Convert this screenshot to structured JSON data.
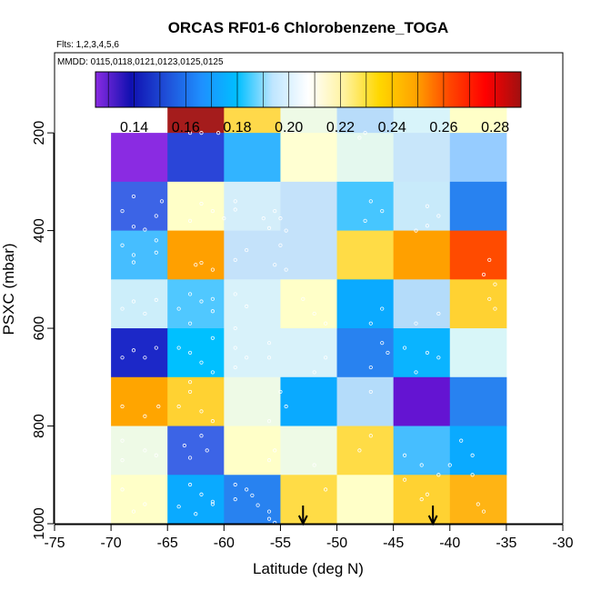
{
  "chart_data": {
    "type": "heatmap",
    "title": "ORCAS RF01-6 Chlorobenzene_TOGA",
    "subtitle_flights": "Flts: 1,2,3,4,5,6",
    "subtitle_dates": "MMDD: 0115,0118,0121,0123,0125,0125",
    "xlabel": "Latitude (deg N)",
    "ylabel": "PSXC (mbar)",
    "xlim": [
      -75,
      -30
    ],
    "ylim": [
      1000,
      0
    ],
    "x_ticks": [
      "-75",
      "-70",
      "-65",
      "-60",
      "-55",
      "-50",
      "-45",
      "-40",
      "-35",
      "-30"
    ],
    "y_ticks": [
      "200",
      "400",
      "600",
      "800",
      "1000"
    ],
    "colorbar": {
      "range": [
        0.125,
        0.29
      ],
      "ticks": [
        "0.14",
        "0.16",
        "0.18",
        "0.20",
        "0.22",
        "0.24",
        "0.26",
        "0.28"
      ],
      "stops": [
        "#8a2be2",
        "#1010b0",
        "#1f4fd8",
        "#1e90ff",
        "#00bfff",
        "#bfe6ff",
        "#ffffff",
        "#fff3a0",
        "#ffd700",
        "#ffa500",
        "#ff4500",
        "#ff0000",
        "#a01010"
      ]
    },
    "x_edges": [
      -70,
      -65,
      -60,
      -55,
      -50,
      -45,
      -40,
      -35
    ],
    "y_edges": [
      100,
      200,
      300,
      400,
      500,
      600,
      700,
      800,
      900,
      1000
    ],
    "cell_colors": [
      [
        null,
        "#a51c1c",
        "#ffd94a",
        "#eefae6",
        "#b8dcfa",
        "#d8f4fa",
        "#ffffc8"
      ],
      [
        "#8a2be2",
        "#2a45d8",
        "#32b4ff",
        "#ffffd2",
        "#e4f8ee",
        "#c8e6fa",
        "#96ccff"
      ],
      [
        "#3c64e6",
        "#ffffc8",
        "#d4eefa",
        "#c4e2fa",
        "#46c6ff",
        "#c8eafa",
        "#2882f0"
      ],
      [
        "#46beff",
        "#ffa000",
        "#c4e2fa",
        "#c4e2fa",
        "#ffdc46",
        "#ffa000",
        "#ff4b00"
      ],
      [
        "#cceefa",
        "#50c8ff",
        "#d8f2fa",
        "#ffffc8",
        "#0aaaff",
        "#b4dcfa",
        "#ffd232"
      ],
      [
        "#1c28c8",
        "#00c0ff",
        "#d8f2fa",
        "#d8f2fa",
        "#2882f0",
        "#0ab4ff",
        "#d8f6f8"
      ],
      [
        "#ffa500",
        "#ffd232",
        "#eefae6",
        "#0aaaff",
        "#b4dcfa",
        "#6414d2",
        "#2882f0"
      ],
      [
        "#eefae6",
        "#3c64e6",
        "#ffffc8",
        "#eefae6",
        "#ffdc46",
        "#46beff",
        "#0aaaff"
      ],
      [
        "#ffffc8",
        "#0aaaff",
        "#2882f0",
        "#ffdc46",
        "#ffffc8",
        "#ffd232",
        "#ffb414"
      ]
    ],
    "arrows_lat": [
      -53,
      -41.5
    ],
    "points": [
      [
        -68,
        330
      ],
      [
        -69,
        360
      ],
      [
        -68,
        392
      ],
      [
        -66,
        370
      ],
      [
        -67,
        398
      ],
      [
        -65.5,
        340
      ],
      [
        -69,
        430
      ],
      [
        -68,
        450
      ],
      [
        -68,
        465
      ],
      [
        -66,
        420
      ],
      [
        -66,
        445
      ],
      [
        -69,
        560
      ],
      [
        -67,
        570
      ],
      [
        -66,
        542
      ],
      [
        -68,
        545
      ],
      [
        -68,
        645
      ],
      [
        -66,
        640
      ],
      [
        -69,
        660
      ],
      [
        -67,
        660
      ],
      [
        -69,
        760
      ],
      [
        -67,
        780
      ],
      [
        -65.8,
        760
      ],
      [
        -69,
        830
      ],
      [
        -67,
        850
      ],
      [
        -69,
        870
      ],
      [
        -66,
        860
      ],
      [
        -69,
        930
      ],
      [
        -67,
        960
      ],
      [
        -68,
        975
      ],
      [
        -63,
        200
      ],
      [
        -62,
        200
      ],
      [
        -60.5,
        200
      ],
      [
        -62,
        345
      ],
      [
        -61,
        360
      ],
      [
        -63,
        380
      ],
      [
        -62,
        466
      ],
      [
        -62.5,
        470
      ],
      [
        -61,
        480
      ],
      [
        -63,
        530
      ],
      [
        -62,
        545
      ],
      [
        -61,
        540
      ],
      [
        -64,
        560
      ],
      [
        -63,
        590
      ],
      [
        -61,
        565
      ],
      [
        -64,
        640
      ],
      [
        -63,
        650
      ],
      [
        -62,
        670
      ],
      [
        -61,
        690
      ],
      [
        -63,
        710
      ],
      [
        -61,
        620
      ],
      [
        -63,
        730
      ],
      [
        -64,
        760
      ],
      [
        -62,
        770
      ],
      [
        -61,
        790
      ],
      [
        -62,
        820
      ],
      [
        -63.5,
        840
      ],
      [
        -61.5,
        850
      ],
      [
        -63,
        865
      ],
      [
        -63,
        920
      ],
      [
        -62,
        940
      ],
      [
        -61,
        955
      ],
      [
        -64,
        965
      ],
      [
        -62.5,
        980
      ],
      [
        -61,
        960
      ],
      [
        -59,
        340
      ],
      [
        -59,
        357
      ],
      [
        -60,
        375
      ],
      [
        -58,
        440
      ],
      [
        -59,
        460
      ],
      [
        -59,
        530
      ],
      [
        -58,
        555
      ],
      [
        -59,
        600
      ],
      [
        -59,
        640
      ],
      [
        -58,
        660
      ],
      [
        -59,
        680
      ],
      [
        -59,
        920
      ],
      [
        -58,
        930
      ],
      [
        -57.5,
        942
      ],
      [
        -59,
        950
      ],
      [
        -57,
        962
      ],
      [
        -56,
        975
      ],
      [
        -56,
        990
      ],
      [
        -55.5,
        998
      ],
      [
        -56,
        395
      ],
      [
        -55.5,
        360
      ],
      [
        -55,
        375
      ],
      [
        -56.5,
        375
      ],
      [
        -54.5,
        400
      ],
      [
        -55,
        430
      ],
      [
        -55.5,
        470
      ],
      [
        -54.5,
        480
      ],
      [
        -56,
        630
      ],
      [
        -56,
        660
      ],
      [
        -55,
        730
      ],
      [
        -54.5,
        760
      ],
      [
        -56,
        790
      ],
      [
        -55.5,
        850
      ],
      [
        -56,
        870
      ],
      [
        -53,
        540
      ],
      [
        -52,
        570
      ],
      [
        -51,
        590
      ],
      [
        -51,
        660
      ],
      [
        -52,
        690
      ],
      [
        -52,
        880
      ],
      [
        -51,
        930
      ],
      [
        -47.5,
        200
      ],
      [
        -48,
        210
      ],
      [
        -47,
        340
      ],
      [
        -46,
        360
      ],
      [
        -47.5,
        380
      ],
      [
        -46,
        560
      ],
      [
        -47,
        590
      ],
      [
        -46,
        630
      ],
      [
        -45.5,
        650
      ],
      [
        -47,
        680
      ],
      [
        -47,
        730
      ],
      [
        -47,
        820
      ],
      [
        -48,
        850
      ],
      [
        -42,
        350
      ],
      [
        -41,
        370
      ],
      [
        -43,
        400
      ],
      [
        -42,
        390
      ],
      [
        -41,
        570
      ],
      [
        -43,
        590
      ],
      [
        -44,
        640
      ],
      [
        -41,
        660
      ],
      [
        -43,
        690
      ],
      [
        -42,
        650
      ],
      [
        -44,
        860
      ],
      [
        -42.5,
        880
      ],
      [
        -41,
        900
      ],
      [
        -44,
        910
      ],
      [
        -42,
        940
      ],
      [
        -42.5,
        950
      ],
      [
        -39,
        830
      ],
      [
        -38,
        860
      ],
      [
        -40,
        880
      ],
      [
        -38,
        900
      ],
      [
        -36.5,
        460
      ],
      [
        -37,
        490
      ],
      [
        -36,
        510
      ],
      [
        -36.5,
        540
      ],
      [
        -36,
        560
      ],
      [
        -37.5,
        960
      ],
      [
        -37,
        975
      ]
    ]
  }
}
